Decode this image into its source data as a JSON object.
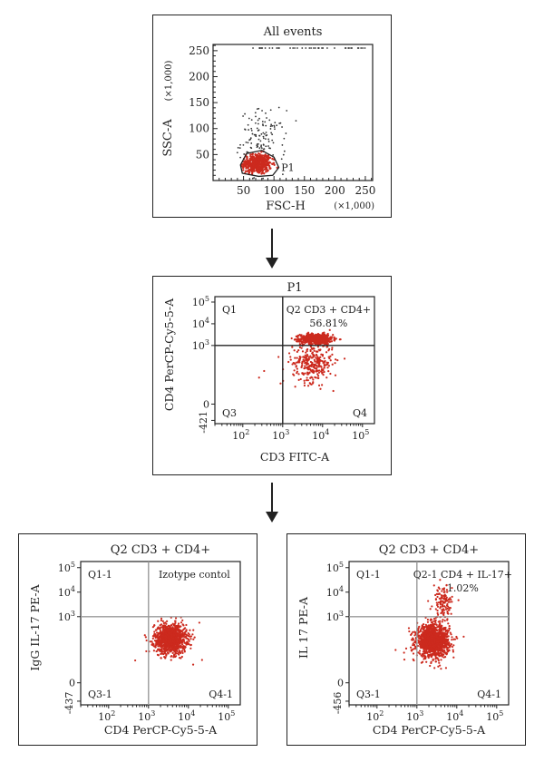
{
  "chart_data": [
    {
      "type": "scatter",
      "title": "All events",
      "xlabel": "FSC-H",
      "ylabel": "SSC-A",
      "x_unit": "(×1,000)",
      "y_unit": "(×1,000)",
      "xlim": [
        0,
        262
      ],
      "ylim": [
        0,
        262
      ],
      "xticks": [
        50,
        100,
        150,
        200,
        250
      ],
      "yticks": [
        50,
        100,
        150,
        200,
        250
      ],
      "gate_label": "P1",
      "gate_polygon": [
        [
          48,
          14
        ],
        [
          75,
          8
        ],
        [
          98,
          10
        ],
        [
          108,
          25
        ],
        [
          100,
          45
        ],
        [
          80,
          58
        ],
        [
          55,
          52
        ],
        [
          45,
          30
        ]
      ],
      "colors": {
        "gated": "#cc2a1e",
        "ungated": "#333333",
        "gate": "#222222"
      },
      "series": [
        {
          "gated": true,
          "cluster": {
            "cx": 72,
            "cy": 32,
            "sx": 12,
            "sy": 10,
            "n": 420
          }
        },
        {
          "gated": false,
          "cluster": {
            "cx": 82,
            "cy": 75,
            "sx": 18,
            "sy": 30,
            "n": 140
          }
        },
        {
          "gated": false,
          "top_row": {
            "y": 255,
            "x_range": [
              58,
              250
            ],
            "n": 40
          }
        }
      ]
    },
    {
      "type": "scatter",
      "title": "P1",
      "xlabel": "CD3 FITC-A",
      "ylabel": "CD4 PerCP-Cy5-5-A",
      "xscale": "biexponential",
      "yscale": "biexponential",
      "xticks": [
        "10^2",
        "10^3",
        "10^4",
        "10^5"
      ],
      "yticks": [
        "-421",
        "0",
        "10^3",
        "10^4",
        "10^5"
      ],
      "quadrant_labels": {
        "q1": "Q1",
        "q2_name": "Q2 CD3 + CD4+",
        "q2_pct": "56.81%",
        "q3": "Q3",
        "q4": "Q4"
      },
      "colors": {
        "points": "#cc2a1e",
        "quadrant": "#222222"
      },
      "series": [
        {
          "cluster": {
            "cx_decades": 3.85,
            "cy_decades": 3.3,
            "sx": 0.2,
            "sy": 0.12,
            "n": 650
          }
        },
        {
          "cluster": {
            "cx_decades": 3.75,
            "cy_decades": 2.2,
            "sx": 0.25,
            "sy": 0.45,
            "n": 300
          }
        }
      ]
    },
    {
      "type": "scatter",
      "title": "Q2 CD3 + CD4+",
      "xlabel": "CD4 PerCP-Cy5-5-A",
      "ylabel": "IgG IL-17 PE-A",
      "xscale": "biexponential",
      "yscale": "biexponential",
      "xticks": [
        "10^2",
        "10^3",
        "10^4",
        "10^5"
      ],
      "yticks": [
        "-437",
        "0",
        "10^3",
        "10^4",
        "10^5"
      ],
      "quadrant_labels": {
        "q1": "Q1-1",
        "q2_name": "Izotype contol",
        "q2_pct": "",
        "q3": "Q3-1",
        "q4": "Q4-1"
      },
      "colors": {
        "points": "#cc2a1e",
        "quadrant": "#999999"
      },
      "series": [
        {
          "cluster": {
            "cx_decades": 3.55,
            "cy_decades": 2.1,
            "sx": 0.2,
            "sy": 0.3,
            "n": 1100
          }
        }
      ]
    },
    {
      "type": "scatter",
      "title": "Q2 CD3 + CD4+",
      "xlabel": "CD4 PerCP-Cy5-5-A",
      "ylabel": "IL 17 PE-A",
      "xscale": "biexponential",
      "yscale": "biexponential",
      "xticks": [
        "10^2",
        "10^3",
        "10^4",
        "10^5"
      ],
      "yticks": [
        "-456",
        "0",
        "10^3",
        "10^4",
        "10^5"
      ],
      "quadrant_labels": {
        "q1": "Q1-1",
        "q2_name": "Q2-1 CD4 + IL-17+",
        "q2_pct": "1.02%",
        "q3": "Q3-1",
        "q4": "Q4-1"
      },
      "colors": {
        "points": "#cc2a1e",
        "quadrant": "#999999"
      },
      "series": [
        {
          "cluster": {
            "cx_decades": 3.4,
            "cy_decades": 2.0,
            "sx": 0.2,
            "sy": 0.32,
            "n": 1300
          }
        },
        {
          "cluster": {
            "cx_decades": 3.65,
            "cy_decades": 3.55,
            "sx": 0.12,
            "sy": 0.35,
            "n": 130
          }
        }
      ]
    }
  ]
}
